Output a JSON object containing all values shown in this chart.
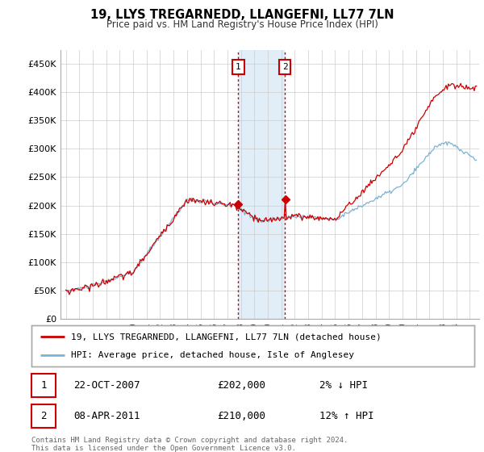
{
  "title": "19, LLYS TREGARNEDD, LLANGEFNI, LL77 7LN",
  "subtitle": "Price paid vs. HM Land Registry's House Price Index (HPI)",
  "footer": "Contains HM Land Registry data © Crown copyright and database right 2024.\nThis data is licensed under the Open Government Licence v3.0.",
  "legend_entry1": "19, LLYS TREGARNEDD, LLANGEFNI, LL77 7LN (detached house)",
  "legend_entry2": "HPI: Average price, detached house, Isle of Anglesey",
  "transaction1_date": "22-OCT-2007",
  "transaction1_price": "£202,000",
  "transaction1_hpi": "2% ↓ HPI",
  "transaction2_date": "08-APR-2011",
  "transaction2_price": "£210,000",
  "transaction2_hpi": "12% ↑ HPI",
  "ylabel_ticks": [
    "£0",
    "£50K",
    "£100K",
    "£150K",
    "£200K",
    "£250K",
    "£300K",
    "£350K",
    "£400K",
    "£450K"
  ],
  "ytick_values": [
    0,
    50000,
    100000,
    150000,
    200000,
    250000,
    300000,
    350000,
    400000,
    450000
  ],
  "ylim": [
    0,
    475000
  ],
  "hpi_color": "#7ab3d4",
  "price_color": "#cc0000",
  "vline_color": "#cc0000",
  "shade_color": "#d6e8f5",
  "transaction1_x": 2007.81,
  "transaction2_x": 2011.27,
  "background_color": "#ffffff",
  "grid_color": "#cccccc",
  "t1_price": 202000,
  "t2_price": 210000
}
